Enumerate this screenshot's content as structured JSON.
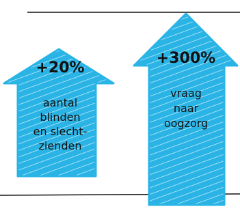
{
  "arrows": [
    {
      "value": "+20%",
      "lines": [
        "aantal",
        "blinden",
        "en slecht-",
        "zienden"
      ]
    },
    {
      "value": "+300%",
      "lines": [
        "vraag",
        "naar",
        "oogzorg"
      ]
    }
  ]
}
